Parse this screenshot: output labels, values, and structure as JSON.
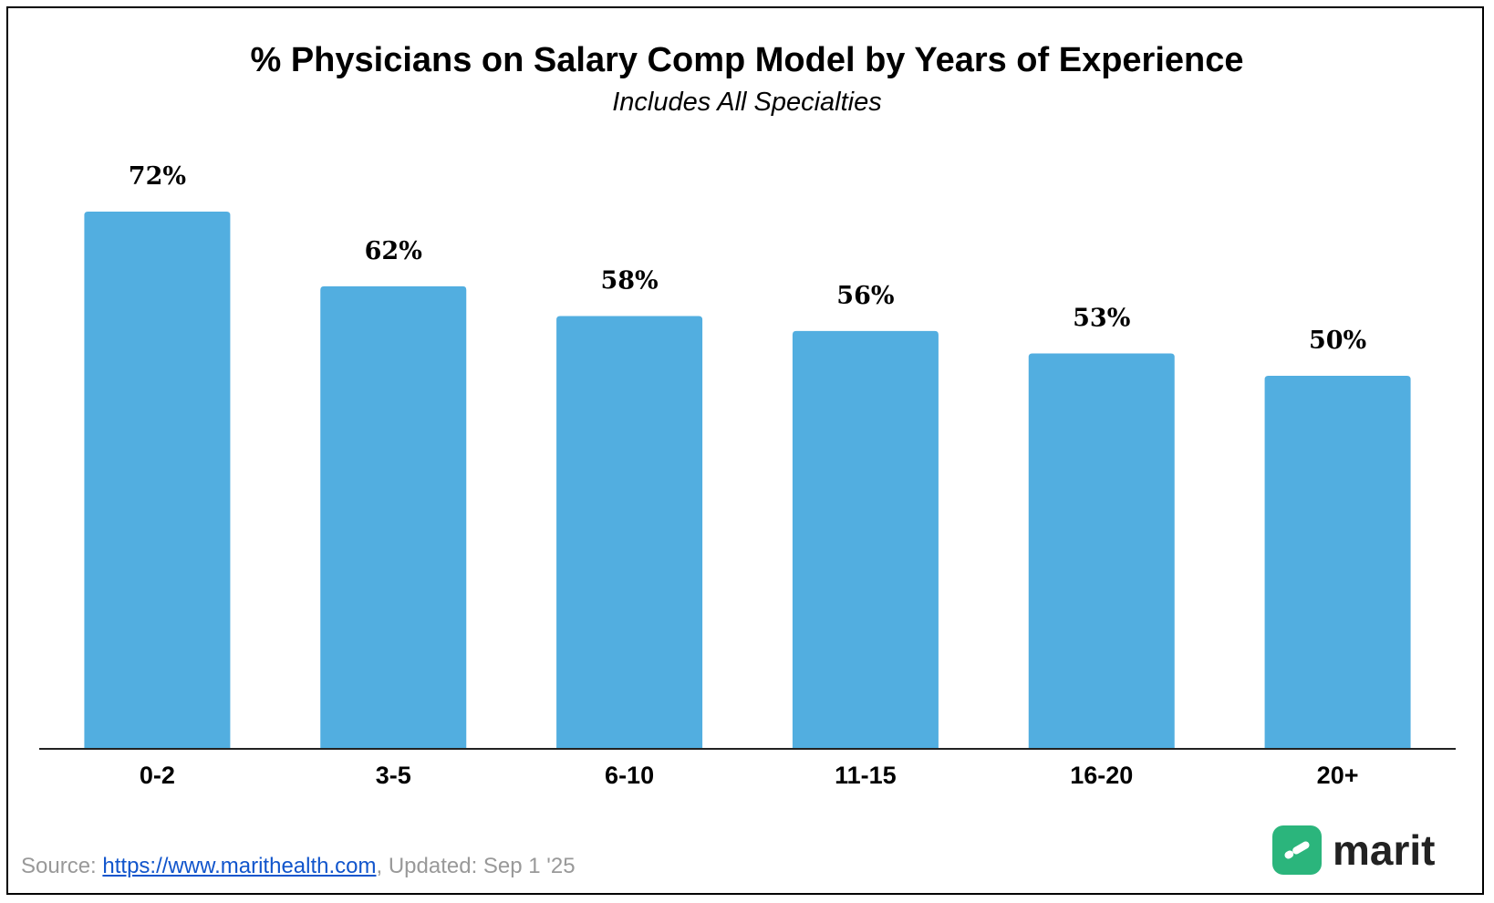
{
  "colors": {
    "bar": "#52aee0",
    "axis": "#222222",
    "brand": "#2bb57c"
  },
  "footer": {
    "source_prefix": "Source: ",
    "source_link": "https://www.marithealth.com",
    "updated": ", Updated: Sep 1 '25"
  },
  "brand": {
    "logo_icon": "marit-logo-icon",
    "name": "marit"
  },
  "chart_data": {
    "type": "bar",
    "title": "% Physicians on Salary Comp Model by Years of Experience",
    "subtitle": "Includes All Specialties",
    "categories": [
      "0-2",
      "3-5",
      "6-10",
      "11-15",
      "16-20",
      "20+"
    ],
    "values": [
      72,
      62,
      58,
      56,
      53,
      50
    ],
    "data_labels": [
      "72%",
      "62%",
      "58%",
      "56%",
      "53%",
      "50%"
    ],
    "unit": "%",
    "xlabel": "",
    "ylabel": "",
    "ylim": [
      0,
      80
    ],
    "grid": false,
    "legend": "none"
  }
}
